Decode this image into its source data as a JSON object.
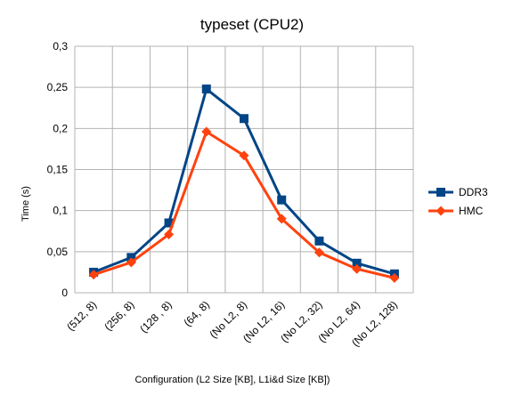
{
  "chart_data": {
    "type": "line",
    "title": "typeset (CPU2)",
    "xlabel": "Configuration (L2 Size [KB], L1i&d Size [KB])",
    "ylabel": "Time (s)",
    "categories": [
      "(512, 8)",
      "(256, 8)",
      "(128 , 8)",
      "(64, 8)",
      "(No L2, 8)",
      "(No L2, 16)",
      "(No L2, 32)",
      "(No L2, 64)",
      "(No L2, 128)"
    ],
    "ylim": [
      0,
      0.3
    ],
    "yticks": [
      0,
      0.05,
      0.1,
      0.15,
      0.2,
      0.25,
      0.3
    ],
    "ytick_labels": [
      "0",
      "0,05",
      "0,1",
      "0,15",
      "0,2",
      "0,25",
      "0,3"
    ],
    "grid": true,
    "legend_position": "right",
    "series": [
      {
        "name": "DDR3",
        "color": "#004586",
        "marker": "square",
        "values": [
          0.025,
          0.043,
          0.085,
          0.248,
          0.212,
          0.113,
          0.063,
          0.036,
          0.023
        ]
      },
      {
        "name": "HMC",
        "color": "#ff420e",
        "marker": "diamond",
        "values": [
          0.022,
          0.037,
          0.071,
          0.196,
          0.167,
          0.09,
          0.049,
          0.029,
          0.018
        ]
      }
    ]
  }
}
